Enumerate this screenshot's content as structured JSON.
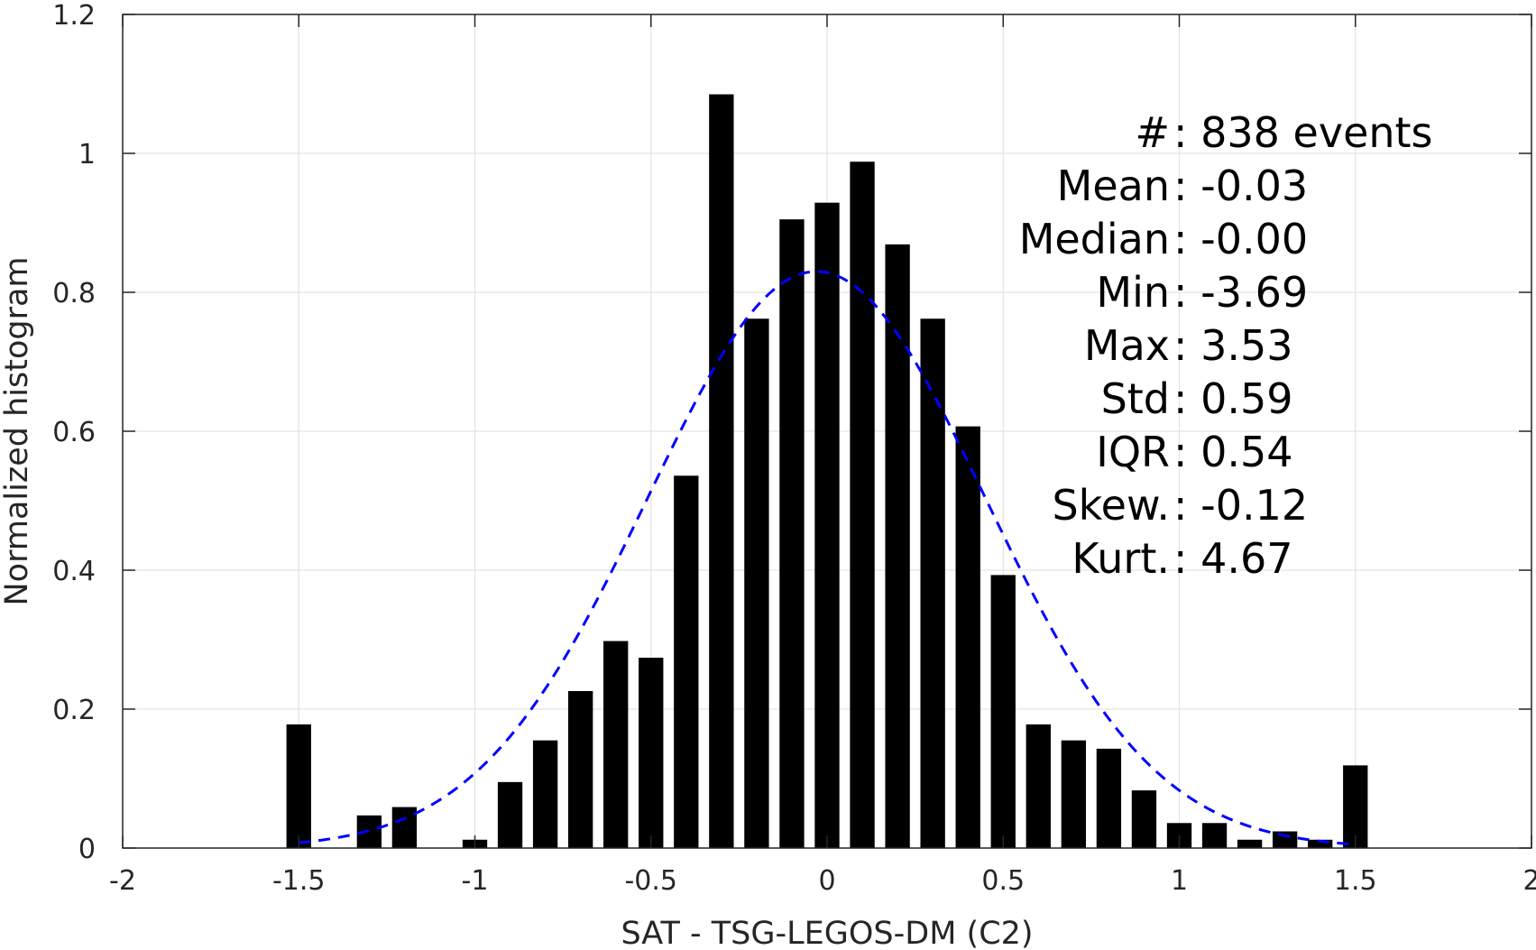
{
  "chart_data": {
    "type": "bar",
    "xlabel": "SAT - TSG-LEGOS-DM (C2)",
    "ylabel": "Normalized histogram",
    "xlim": [
      -2,
      2
    ],
    "ylim": [
      0,
      1.2
    ],
    "xticks": [
      {
        "value": -2,
        "label": "-2"
      },
      {
        "value": -1.5,
        "label": "-1.5"
      },
      {
        "value": -1,
        "label": "-1"
      },
      {
        "value": -0.5,
        "label": "-0.5"
      },
      {
        "value": 0,
        "label": "0"
      },
      {
        "value": 0.5,
        "label": "0.5"
      },
      {
        "value": 1,
        "label": "1"
      },
      {
        "value": 1.5,
        "label": "1.5"
      },
      {
        "value": 2,
        "label": "2"
      }
    ],
    "yticks": [
      {
        "value": 0,
        "label": "0"
      },
      {
        "value": 0.2,
        "label": "0.2"
      },
      {
        "value": 0.4,
        "label": "0.4"
      },
      {
        "value": 0.6,
        "label": "0.6"
      },
      {
        "value": 0.8,
        "label": "0.8"
      },
      {
        "value": 1,
        "label": "1"
      },
      {
        "value": 1.2,
        "label": "1.2"
      }
    ],
    "grid": true,
    "bar_width": 0.07,
    "bar_color": "#000000",
    "bars": {
      "x": [
        -1.5,
        -1.3,
        -1.2,
        -1.0,
        -0.9,
        -0.8,
        -0.7,
        -0.6,
        -0.5,
        -0.4,
        -0.3,
        -0.2,
        -0.1,
        0.0,
        0.1,
        0.2,
        0.3,
        0.4,
        0.5,
        0.6,
        0.7,
        0.8,
        0.9,
        1.0,
        1.1,
        1.2,
        1.3,
        1.4,
        1.5
      ],
      "values": [
        0.178,
        0.047,
        0.059,
        0.012,
        0.095,
        0.155,
        0.226,
        0.298,
        0.274,
        0.536,
        1.085,
        0.762,
        0.905,
        0.929,
        0.988,
        0.869,
        0.762,
        0.607,
        0.393,
        0.178,
        0.155,
        0.143,
        0.083,
        0.036,
        0.036,
        0.012,
        0.024,
        0.012,
        0.119
      ]
    },
    "fit_curve": {
      "type": "gaussian",
      "mean": -0.03,
      "std": 0.48,
      "peak": 0.83,
      "x_range": [
        -1.5,
        1.5
      ],
      "color": "#0000ff",
      "style": "dashed"
    },
    "stats": [
      {
        "label": "#  ",
        "sep": ": ",
        "value": "838 events"
      },
      {
        "label": "Mean ",
        "sep": ": ",
        "value": "-0.03"
      },
      {
        "label": "Median ",
        "sep": ": ",
        "value": "-0.00"
      },
      {
        "label": "Min ",
        "sep": ": ",
        "value": "-3.69"
      },
      {
        "label": "Max ",
        "sep": ": ",
        "value": "3.53"
      },
      {
        "label": "Std ",
        "sep": ": ",
        "value": "0.59"
      },
      {
        "label": "IQR ",
        "sep": ": ",
        "value": "0.54"
      },
      {
        "label": "Skew. ",
        "sep": ": ",
        "value": "-0.12"
      },
      {
        "label": "Kurt. ",
        "sep": ": ",
        "value": "4.67"
      }
    ]
  }
}
